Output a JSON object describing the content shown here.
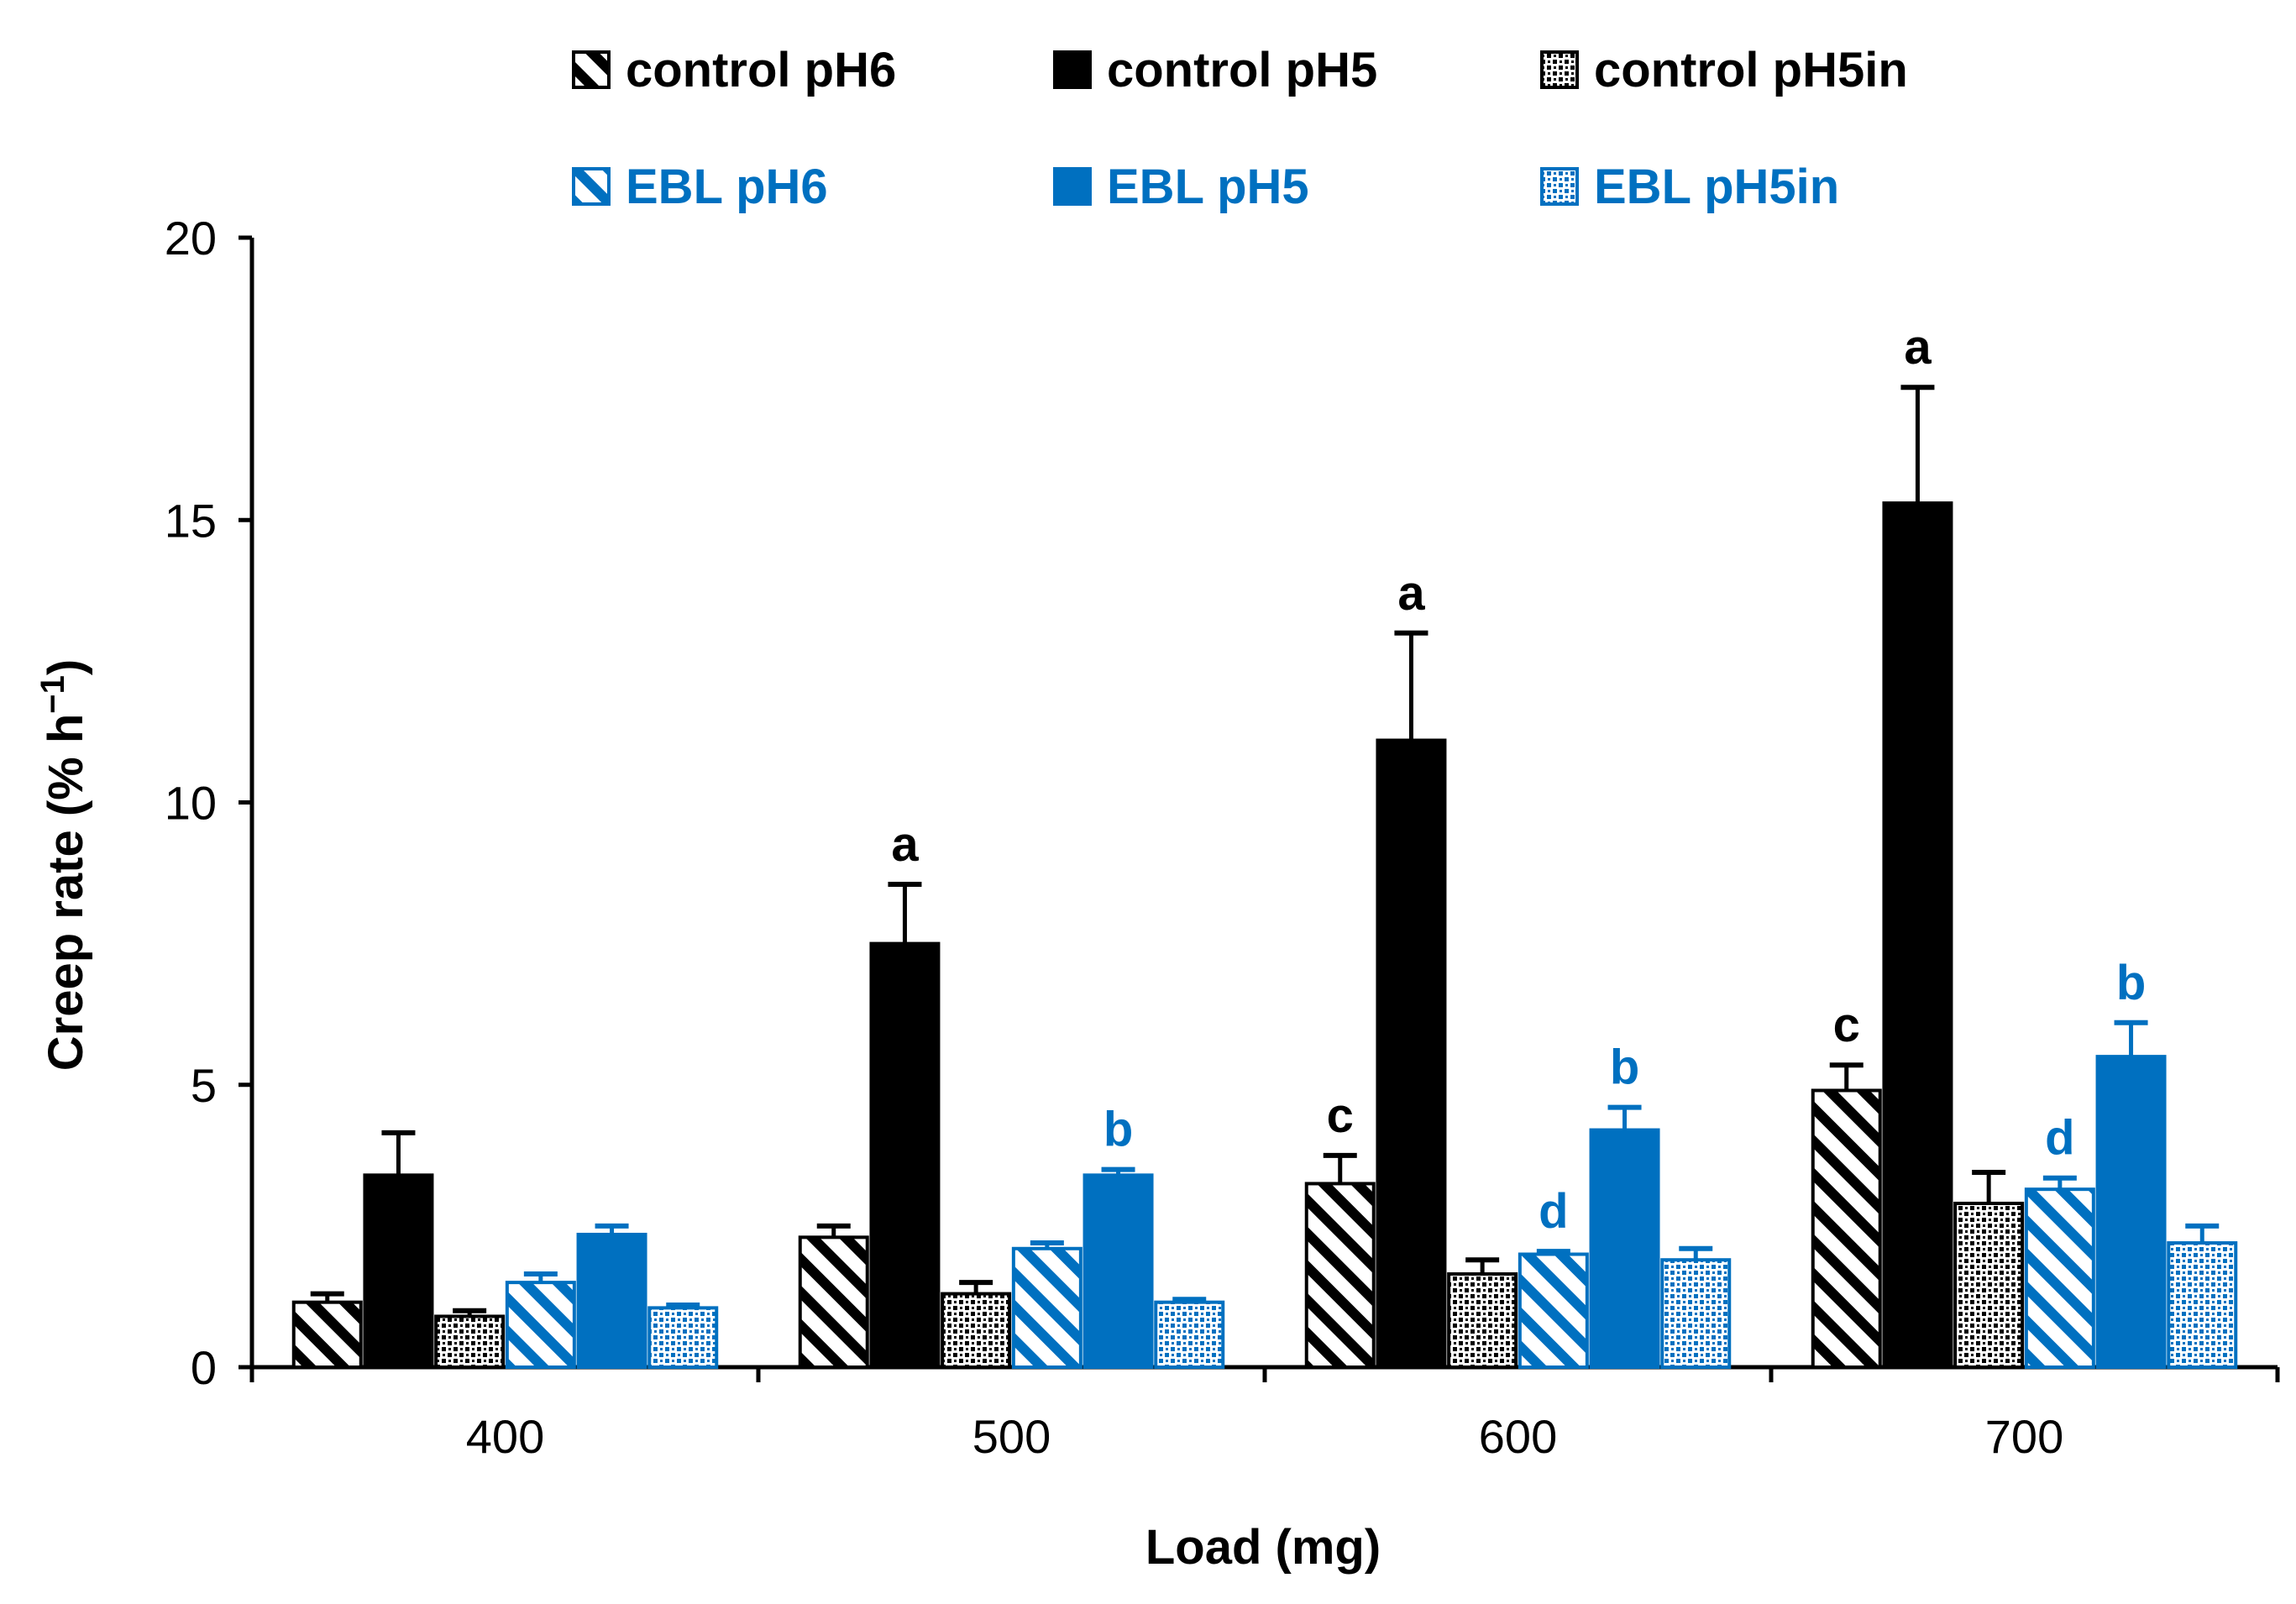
{
  "chart_data": {
    "type": "bar",
    "title": "",
    "xlabel": "Load (mg)",
    "ylabel": "Creep rate (% h",
    "ylabel_superscript": "−1",
    "ylabel_close": ")",
    "ylim": [
      0,
      20
    ],
    "yticks": [
      0,
      5,
      10,
      15,
      20
    ],
    "grid": false,
    "legend_position": "top",
    "categories": [
      "400",
      "500",
      "600",
      "700"
    ],
    "series": [
      {
        "name": "control pH6",
        "color": "#000000",
        "pattern": "hatch",
        "values": [
          1.15,
          2.3,
          3.25,
          4.9
        ],
        "errors": [
          0.15,
          0.2,
          0.5,
          0.45
        ],
        "labels": [
          "",
          "",
          "c",
          "c"
        ]
      },
      {
        "name": "control pH5",
        "color": "#000000",
        "pattern": "solid",
        "values": [
          3.4,
          7.5,
          11.1,
          15.3
        ],
        "errors": [
          0.75,
          1.05,
          1.9,
          2.05
        ],
        "labels": [
          "",
          "a",
          "a",
          "a"
        ]
      },
      {
        "name": "control pH5in",
        "color": "#000000",
        "pattern": "dots",
        "values": [
          0.9,
          1.3,
          1.65,
          2.9
        ],
        "errors": [
          0.1,
          0.2,
          0.25,
          0.55
        ],
        "labels": [
          "",
          "",
          "",
          ""
        ]
      },
      {
        "name": "EBL pH6",
        "color": "#0070C0",
        "pattern": "hatch",
        "values": [
          1.5,
          2.1,
          2.0,
          3.15
        ],
        "errors": [
          0.15,
          0.1,
          0.05,
          0.2
        ],
        "labels": [
          "",
          "",
          "d",
          "d"
        ]
      },
      {
        "name": "EBL pH5",
        "color": "#0070C0",
        "pattern": "solid",
        "values": [
          2.35,
          3.4,
          4.2,
          5.5
        ],
        "errors": [
          0.15,
          0.1,
          0.4,
          0.6
        ],
        "labels": [
          "",
          "b",
          "b",
          "b"
        ]
      },
      {
        "name": "EBL pH5in",
        "color": "#0070C0",
        "pattern": "dots",
        "values": [
          1.05,
          1.15,
          1.9,
          2.2
        ],
        "errors": [
          0.05,
          0.05,
          0.2,
          0.3
        ],
        "labels": [
          "",
          "",
          "",
          ""
        ]
      }
    ]
  }
}
